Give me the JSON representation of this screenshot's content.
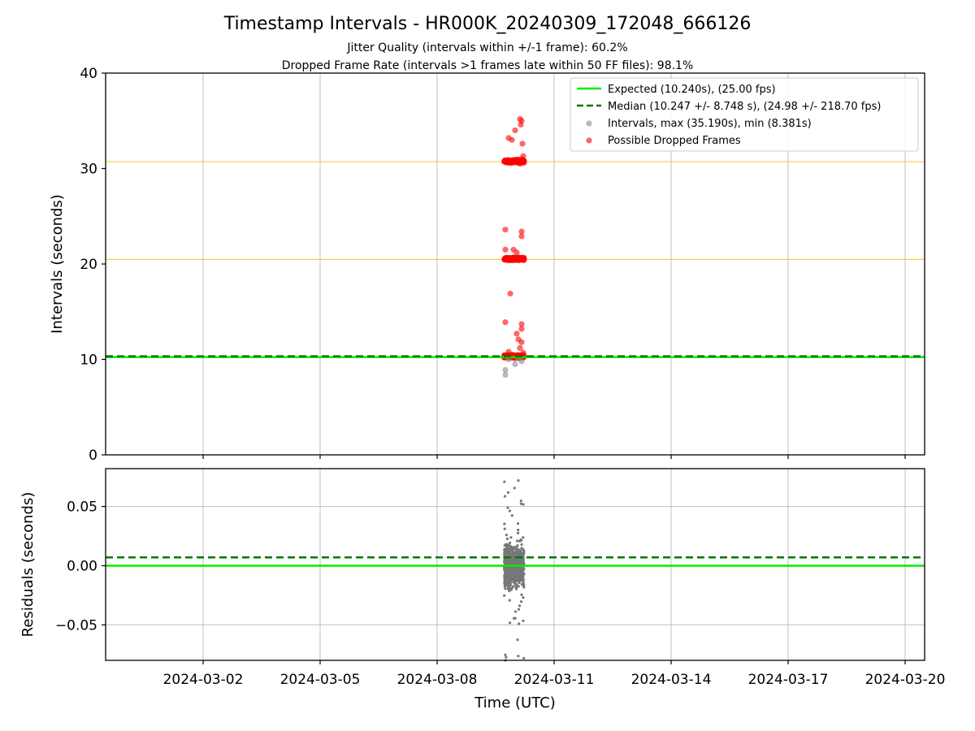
{
  "chart_data": [
    {
      "type": "scatter",
      "title": "Timestamp Intervals - HR000K_20240309_172048_666126",
      "subtitle_lines": [
        "Jitter Quality (intervals within +/-1 frame): 60.2%",
        "Dropped Frame Rate (intervals >1 frames late within 50 FF files): 98.1%"
      ],
      "ylabel": "Intervals (seconds)",
      "ylim": [
        0,
        40
      ],
      "yticks": [
        0,
        10,
        20,
        30,
        40
      ],
      "xlim": [
        "2024-02-28T12:00",
        "2024-03-20T12:00"
      ],
      "grid": true,
      "legend_position": "upper-right",
      "expected_interval": 10.24,
      "median_interval": 10.247,
      "frame_multiples": [
        20.48,
        30.72
      ],
      "colors": {
        "expected": "#00ee00",
        "median": "#007700",
        "intervals": "#8a8a8a",
        "dropped": "#ff0000",
        "multiples": "#ffc94d"
      },
      "legend": [
        {
          "label": "Expected (10.240s), (25.00 fps)",
          "style": "solid-line",
          "color": "#00ee00"
        },
        {
          "label": "Median (10.247 +/- 8.748 s), (24.98 +/- 218.70 fps)",
          "style": "dashed-line",
          "color": "#007700"
        },
        {
          "label": "Intervals, max (35.190s), min (8.381s)",
          "style": "marker",
          "color": "#8a8a8a"
        },
        {
          "label": "Possible Dropped Frames",
          "style": "marker",
          "color": "#ff0000"
        }
      ],
      "time_range": [
        "2024-03-09T17:20",
        "2024-03-10T05:30"
      ],
      "intervals_range": [
        8.381,
        35.19
      ],
      "series": [
        {
          "name": "Intervals",
          "points": [
            {
              "x": "2024-03-09T18:00",
              "y": 8.38
            },
            {
              "x": "2024-03-09T18:00",
              "y": 8.9
            },
            {
              "x": "2024-03-10T00:00",
              "y": 9.5
            },
            {
              "x": "2024-03-10T04:00",
              "y": 9.8
            },
            {
              "x": "2024-03-09T20:00",
              "y": 10.0
            },
            {
              "x": "2024-03-10T02:00",
              "y": 10.1
            }
          ]
        },
        {
          "name": "Possible Dropped Frames",
          "points": [
            {
              "x": "2024-03-10T03:00",
              "y": 35.19
            },
            {
              "x": "2024-03-10T04:00",
              "y": 35.0
            },
            {
              "x": "2024-03-10T03:30",
              "y": 34.6
            },
            {
              "x": "2024-03-10T00:00",
              "y": 34.0
            },
            {
              "x": "2024-03-09T20:00",
              "y": 33.2
            },
            {
              "x": "2024-03-09T22:00",
              "y": 33.0
            },
            {
              "x": "2024-03-10T04:30",
              "y": 32.6
            },
            {
              "x": "2024-03-09T19:00",
              "y": 30.8
            },
            {
              "x": "2024-03-09T23:00",
              "y": 30.7
            },
            {
              "x": "2024-03-10T05:00",
              "y": 31.3
            },
            {
              "x": "2024-03-10T03:00",
              "y": 30.5
            },
            {
              "x": "2024-03-09T18:00",
              "y": 23.6
            },
            {
              "x": "2024-03-10T04:00",
              "y": 23.4
            },
            {
              "x": "2024-03-10T04:00",
              "y": 22.9
            },
            {
              "x": "2024-03-09T18:00",
              "y": 21.5
            },
            {
              "x": "2024-03-09T23:00",
              "y": 21.5
            },
            {
              "x": "2024-03-10T01:00",
              "y": 21.2
            },
            {
              "x": "2024-03-09T20:00",
              "y": 20.6
            },
            {
              "x": "2024-03-10T02:00",
              "y": 20.4
            },
            {
              "x": "2024-03-09T21:00",
              "y": 16.9
            },
            {
              "x": "2024-03-09T18:00",
              "y": 13.9
            },
            {
              "x": "2024-03-10T04:00",
              "y": 13.7
            },
            {
              "x": "2024-03-10T04:00",
              "y": 13.2
            },
            {
              "x": "2024-03-10T01:00",
              "y": 12.7
            },
            {
              "x": "2024-03-10T02:00",
              "y": 12.1
            },
            {
              "x": "2024-03-10T04:00",
              "y": 11.8
            },
            {
              "x": "2024-03-10T03:00",
              "y": 11.2
            },
            {
              "x": "2024-03-09T20:00",
              "y": 10.8
            },
            {
              "x": "2024-03-10T05:00",
              "y": 10.7
            },
            {
              "x": "2024-03-10T00:00",
              "y": 10.4
            }
          ]
        }
      ]
    },
    {
      "type": "scatter",
      "ylabel": "Residuals (seconds)",
      "xlabel": "Time (UTC)",
      "ylim": [
        -0.08,
        0.082
      ],
      "yticks": [
        0.05,
        0.0,
        -0.05
      ],
      "ytick_labels": [
        "0.05",
        "0.00",
        "−0.05"
      ],
      "xticks": [
        "2024-03-02",
        "2024-03-05",
        "2024-03-08",
        "2024-03-11",
        "2024-03-14",
        "2024-03-17",
        "2024-03-20"
      ],
      "xlim": [
        "2024-02-28T12:00",
        "2024-03-20T12:00"
      ],
      "grid": true,
      "expected_residual": 0.0,
      "median_residual": 0.007,
      "colors": {
        "expected": "#00ee00",
        "median": "#007700",
        "points": "#777777"
      },
      "residual_range": [
        -0.08,
        0.072
      ]
    }
  ]
}
